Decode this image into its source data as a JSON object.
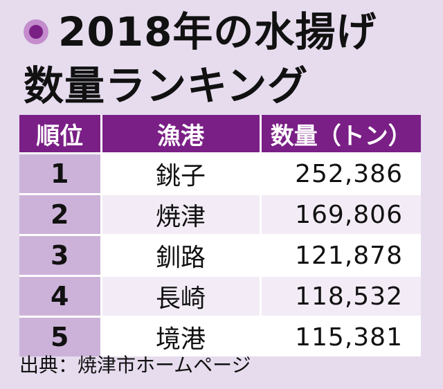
{
  "title": {
    "line1": "2018年の水揚げ",
    "line2": "数量ランキング"
  },
  "table": {
    "headers": [
      "順位",
      "漁港",
      "数量（トン）"
    ],
    "rows": [
      {
        "rank": "1",
        "port": "銚子",
        "quantity": "252,386"
      },
      {
        "rank": "2",
        "port": "焼津",
        "quantity": "169,806"
      },
      {
        "rank": "3",
        "port": "釧路",
        "quantity": "121,878"
      },
      {
        "rank": "4",
        "port": "長崎",
        "quantity": "118,532"
      },
      {
        "rank": "5",
        "port": "境港",
        "quantity": "115,381"
      }
    ]
  },
  "source": "出典：焼津市ホームページ",
  "chart_data": {
    "type": "table",
    "columns": [
      "順位",
      "漁港",
      "数量（トン）"
    ],
    "rows": [
      [
        1,
        "銚子",
        252386
      ],
      [
        2,
        "焼津",
        169806
      ],
      [
        3,
        "釧路",
        121878
      ],
      [
        4,
        "長崎",
        118532
      ],
      [
        5,
        "境港",
        115381
      ]
    ],
    "title": "2018年の水揚げ数量ランキング"
  },
  "colors": {
    "background": "#e6dcee",
    "header": "#7a1f86",
    "rank_cell": "#ccb2d8",
    "bullet_ring": "#c48ccd"
  },
  "icons": {
    "bullet": "circle-bullet-icon"
  }
}
